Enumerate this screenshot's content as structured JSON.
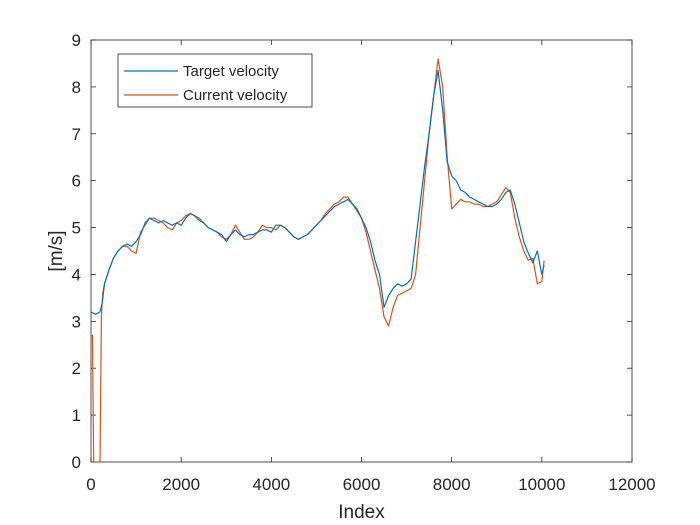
{
  "chart_data": {
    "type": "line",
    "title": "",
    "xlabel": "Index",
    "ylabel": "[m/s]",
    "xlim": [
      0,
      12000
    ],
    "ylim": [
      0,
      9
    ],
    "xticks": [
      0,
      2000,
      4000,
      6000,
      8000,
      10000,
      12000
    ],
    "yticks": [
      0,
      1,
      2,
      3,
      4,
      5,
      6,
      7,
      8,
      9
    ],
    "grid": false,
    "legend_position": "top-left",
    "series": [
      {
        "name": "Target velocity",
        "color": "#0072BD",
        "x": [
          0,
          100,
          200,
          250,
          300,
          400,
          500,
          600,
          700,
          800,
          900,
          1000,
          1100,
          1200,
          1300,
          1400,
          1500,
          1600,
          1700,
          1800,
          1900,
          2000,
          2100,
          2200,
          2300,
          2400,
          2500,
          2600,
          2700,
          2800,
          2900,
          3000,
          3100,
          3200,
          3300,
          3400,
          3500,
          3600,
          3700,
          3800,
          3900,
          4000,
          4100,
          4200,
          4300,
          4400,
          4500,
          4600,
          4700,
          4800,
          4900,
          5000,
          5100,
          5200,
          5300,
          5400,
          5500,
          5600,
          5700,
          5800,
          5900,
          6000,
          6100,
          6200,
          6300,
          6400,
          6500,
          6600,
          6700,
          6800,
          6900,
          7000,
          7100,
          7200,
          7300,
          7400,
          7500,
          7600,
          7700,
          7800,
          7900,
          8000,
          8100,
          8200,
          8300,
          8400,
          8500,
          8600,
          8700,
          8800,
          8900,
          9000,
          9100,
          9200,
          9300,
          9400,
          9500,
          9600,
          9700,
          9800,
          9900,
          10000,
          10050
        ],
        "y": [
          3.2,
          3.15,
          3.2,
          3.4,
          3.8,
          4.1,
          4.35,
          4.5,
          4.6,
          4.65,
          4.6,
          4.7,
          4.85,
          5.1,
          5.2,
          5.15,
          5.1,
          5.15,
          5.1,
          5.05,
          5.1,
          5.05,
          5.2,
          5.3,
          5.25,
          5.15,
          5.1,
          5.0,
          4.95,
          4.9,
          4.85,
          4.7,
          4.85,
          4.95,
          4.85,
          4.8,
          4.85,
          4.85,
          4.9,
          4.95,
          4.95,
          4.9,
          5.05,
          5.05,
          5.0,
          4.9,
          4.8,
          4.75,
          4.8,
          4.85,
          4.95,
          5.05,
          5.15,
          5.25,
          5.35,
          5.45,
          5.5,
          5.55,
          5.6,
          5.5,
          5.4,
          5.2,
          5.0,
          4.7,
          4.3,
          4.0,
          3.3,
          3.55,
          3.7,
          3.8,
          3.75,
          3.8,
          3.9,
          4.7,
          5.5,
          6.3,
          7.0,
          7.8,
          8.35,
          7.5,
          6.4,
          6.1,
          6.0,
          5.8,
          5.75,
          5.65,
          5.6,
          5.55,
          5.5,
          5.45,
          5.45,
          5.5,
          5.6,
          5.75,
          5.8,
          5.5,
          5.1,
          4.7,
          4.45,
          4.25,
          4.5,
          4.0,
          4.2
        ]
      },
      {
        "name": "Current velocity",
        "color": "#D95319",
        "x": [
          0,
          30,
          60,
          100,
          150,
          200,
          230,
          260,
          300,
          400,
          500,
          600,
          700,
          800,
          900,
          1000,
          1100,
          1200,
          1300,
          1400,
          1500,
          1600,
          1700,
          1800,
          1900,
          2000,
          2100,
          2200,
          2300,
          2400,
          2500,
          2600,
          2700,
          2800,
          2900,
          3000,
          3100,
          3200,
          3300,
          3400,
          3500,
          3600,
          3700,
          3800,
          3900,
          4000,
          4100,
          4200,
          4300,
          4400,
          4500,
          4600,
          4700,
          4800,
          4900,
          5000,
          5100,
          5200,
          5300,
          5400,
          5500,
          5600,
          5700,
          5800,
          5900,
          6000,
          6100,
          6200,
          6300,
          6400,
          6500,
          6600,
          6700,
          6800,
          6900,
          7000,
          7100,
          7200,
          7300,
          7400,
          7500,
          7600,
          7700,
          7800,
          7900,
          8000,
          8100,
          8200,
          8300,
          8400,
          8500,
          8600,
          8700,
          8800,
          8900,
          9000,
          9100,
          9200,
          9300,
          9400,
          9500,
          9600,
          9700,
          9800,
          9900,
          10000,
          10050
        ],
        "y": [
          2.7,
          2.7,
          0.0,
          0.0,
          0.0,
          0.0,
          3.1,
          3.6,
          3.8,
          4.1,
          4.35,
          4.5,
          4.6,
          4.6,
          4.5,
          4.45,
          4.9,
          5.05,
          5.2,
          5.2,
          5.15,
          5.1,
          5.0,
          4.95,
          5.1,
          5.15,
          5.25,
          5.3,
          5.25,
          5.2,
          5.1,
          5.0,
          4.95,
          4.9,
          4.8,
          4.75,
          4.85,
          5.05,
          4.9,
          4.75,
          4.75,
          4.8,
          4.9,
          5.05,
          5.0,
          5.0,
          4.95,
          5.05,
          5.0,
          4.9,
          4.8,
          4.75,
          4.8,
          4.85,
          4.95,
          5.05,
          5.15,
          5.3,
          5.4,
          5.5,
          5.55,
          5.65,
          5.65,
          5.5,
          5.35,
          5.2,
          4.9,
          4.5,
          4.1,
          3.7,
          3.1,
          2.9,
          3.3,
          3.55,
          3.6,
          3.65,
          3.7,
          4.0,
          5.0,
          6.0,
          7.0,
          7.8,
          8.6,
          8.0,
          6.5,
          5.4,
          5.5,
          5.6,
          5.55,
          5.55,
          5.5,
          5.5,
          5.45,
          5.45,
          5.5,
          5.55,
          5.7,
          5.85,
          5.75,
          5.2,
          4.8,
          4.5,
          4.3,
          4.35,
          3.8,
          3.85,
          4.3
        ]
      }
    ]
  }
}
